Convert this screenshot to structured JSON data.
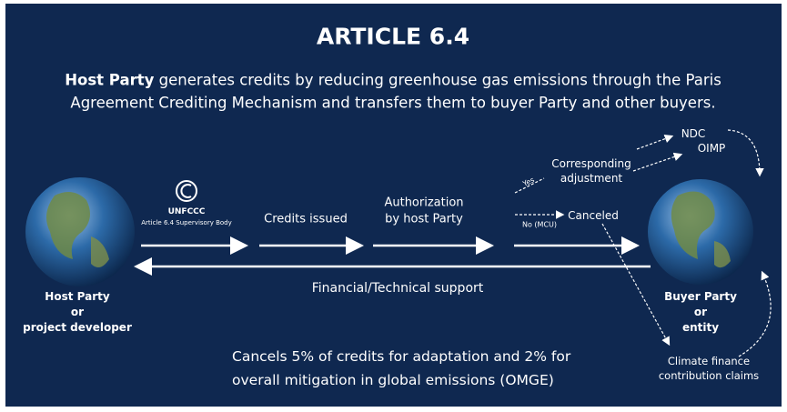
{
  "title": "ARTICLE 6.4",
  "intro": {
    "bold": "Host Party",
    "line1": " generates credits by reducing greenhouse gas emissions through the Paris",
    "line2": "Agreement Crediting Mechanism and transfers them to buyer Party and other buyers."
  },
  "host": {
    "lines": [
      "Host Party",
      "or",
      "project developer"
    ]
  },
  "unfccc": {
    "name": "UNFCCC",
    "body": "Article 6.4 Supervisory Body"
  },
  "steps": {
    "issued": "Credits issued",
    "authorization": [
      "Authorization",
      "by host Party"
    ]
  },
  "branches": {
    "yes": "Yes",
    "no": "No (MCU)",
    "adjustment": [
      "Corresponding",
      "adjustment"
    ],
    "canceled": "Canceled",
    "ndc": "NDC",
    "oimp": "OIMP"
  },
  "support": "Financial/Technical support",
  "buyer": {
    "lines": [
      "Buyer Party",
      "or",
      "entity"
    ]
  },
  "claims": [
    "Climate finance",
    "contribution claims"
  ],
  "note": [
    "Cancels 5% of credits for adaptation and 2% for",
    "overall mitigation in global emissions (OMGE)"
  ]
}
